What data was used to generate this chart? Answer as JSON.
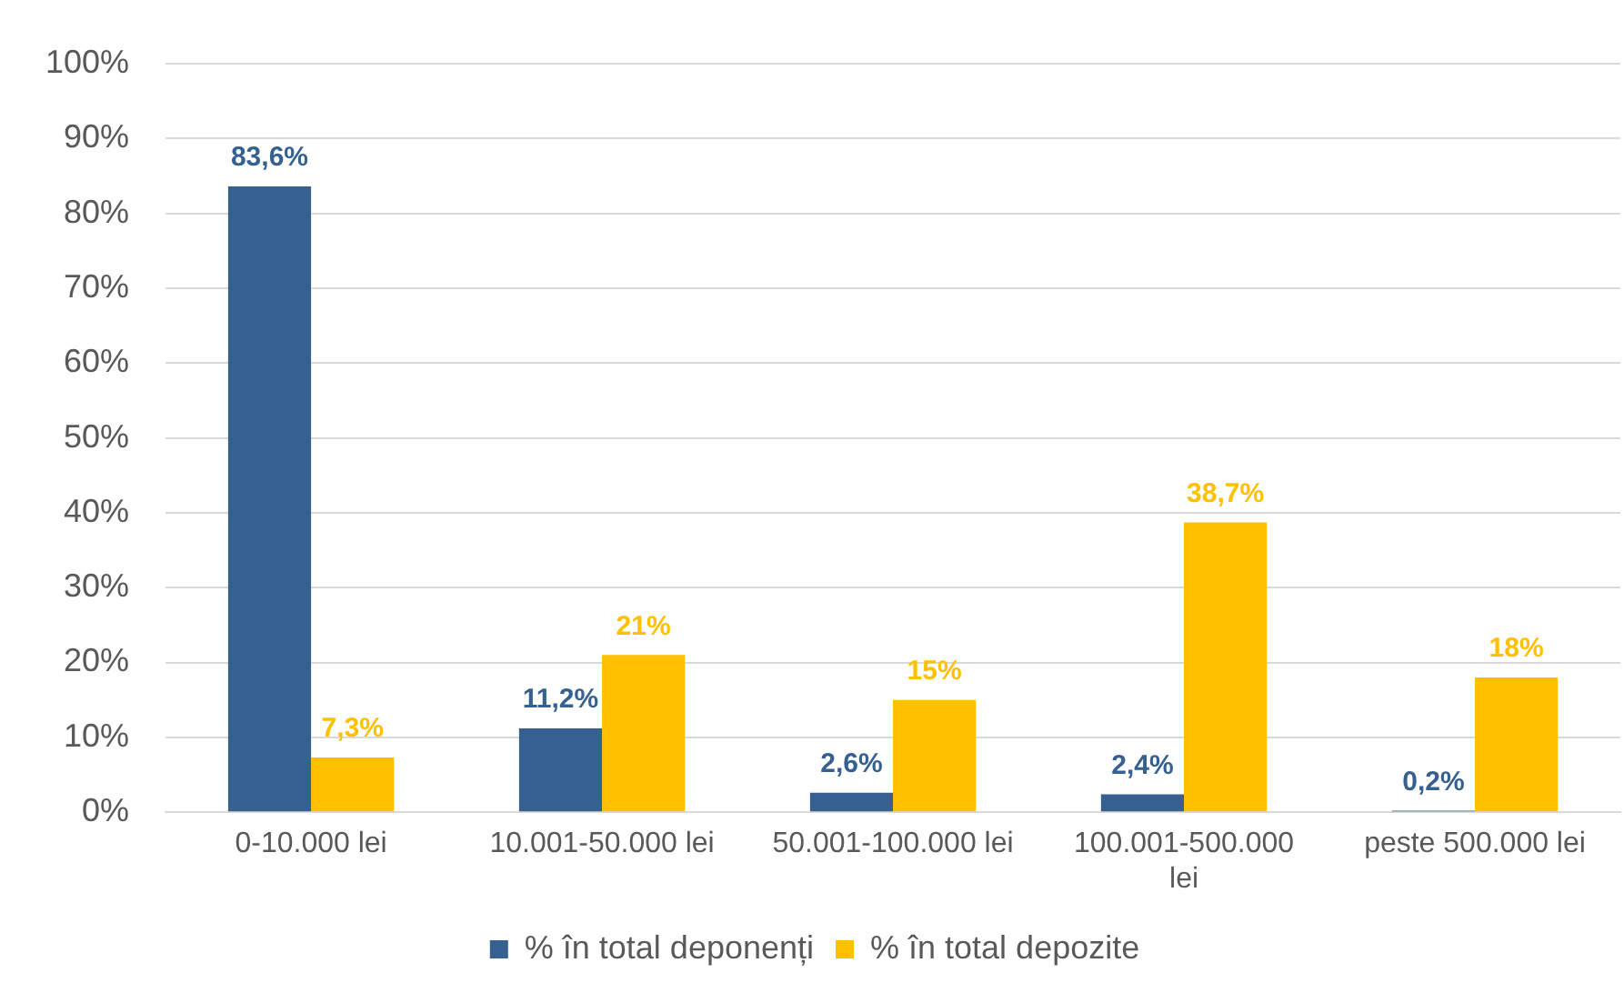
{
  "chart_data": {
    "type": "bar",
    "categories": [
      "0-10.000 lei",
      "10.001-50.000 lei",
      "50.001-100.000 lei",
      "100.001-500.000 lei",
      "peste 500.000 lei"
    ],
    "series": [
      {
        "name": "% în total deponenți",
        "color": "#35608f",
        "values": [
          83.6,
          11.2,
          2.6,
          2.4,
          0.2
        ],
        "value_labels": [
          "83,6%",
          "11,2%",
          "2,6%",
          "2,4%",
          "0,2%"
        ]
      },
      {
        "name": "% în total depozite",
        "color": "#ffc000",
        "values": [
          7.3,
          21,
          15,
          38.7,
          18
        ],
        "value_labels": [
          "7,3%",
          "21%",
          "15%",
          "38,7%",
          "18%"
        ]
      }
    ],
    "ylim": [
      0,
      100
    ],
    "yticks": [
      {
        "value": 0,
        "label": "0%"
      },
      {
        "value": 10,
        "label": "10%"
      },
      {
        "value": 20,
        "label": "20%"
      },
      {
        "value": 30,
        "label": "30%"
      },
      {
        "value": 40,
        "label": "40%"
      },
      {
        "value": 50,
        "label": "50%"
      },
      {
        "value": 60,
        "label": "60%"
      },
      {
        "value": 70,
        "label": "70%"
      },
      {
        "value": 80,
        "label": "80%"
      },
      {
        "value": 90,
        "label": "90%"
      },
      {
        "value": 100,
        "label": "100%"
      }
    ],
    "grid": "y",
    "legend": "bottom"
  }
}
